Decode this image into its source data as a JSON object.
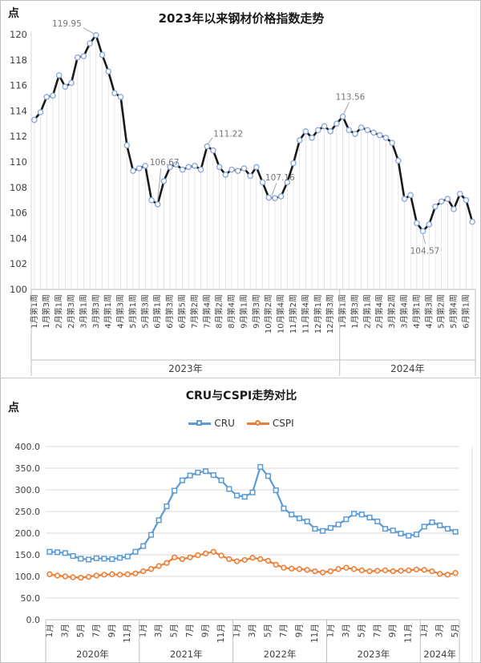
{
  "top_chart": {
    "title": "2023年以来钢材价格指数走势",
    "unit_label": "点"
  },
  "bottom_chart": {
    "title": "CRU与CSPI走势对比",
    "unit_label": "点",
    "legend": [
      "CRU",
      "CSPI"
    ]
  },
  "chart_data": [
    {
      "type": "line",
      "title": "2023年以来钢材价格指数走势",
      "ylabel": "点",
      "ylim": [
        100,
        120
      ],
      "ytick_step": 2,
      "grid": "droplines",
      "line_color": "#1a1a1a",
      "marker_stroke": "#8FAADC",
      "x_labels": [
        {
          "i": 0,
          "t": "1月第1周"
        },
        {
          "i": 2,
          "t": "1月第3周"
        },
        {
          "i": 4,
          "t": "2月第1周"
        },
        {
          "i": 6,
          "t": "2月第3周"
        },
        {
          "i": 8,
          "t": "3月第1周"
        },
        {
          "i": 10,
          "t": "3月第3周"
        },
        {
          "i": 12,
          "t": "4月第1周"
        },
        {
          "i": 14,
          "t": "4月第3周"
        },
        {
          "i": 16,
          "t": "5月第1周"
        },
        {
          "i": 18,
          "t": "5月第3周"
        },
        {
          "i": 20,
          "t": "6月第1周"
        },
        {
          "i": 22,
          "t": "6月第3周"
        },
        {
          "i": 24,
          "t": "6月第5周"
        },
        {
          "i": 26,
          "t": "7月第2周"
        },
        {
          "i": 28,
          "t": "7月第4周"
        },
        {
          "i": 30,
          "t": "8月第2周"
        },
        {
          "i": 32,
          "t": "8月第4周"
        },
        {
          "i": 34,
          "t": "9月第1周"
        },
        {
          "i": 36,
          "t": "9月第3周"
        },
        {
          "i": 38,
          "t": "10月第2周"
        },
        {
          "i": 40,
          "t": "10月第4周"
        },
        {
          "i": 42,
          "t": "11月第2周"
        },
        {
          "i": 44,
          "t": "11月第4周"
        },
        {
          "i": 46,
          "t": "12月第1周"
        },
        {
          "i": 48,
          "t": "12月第3周"
        },
        {
          "i": 50,
          "t": "1月第1周"
        },
        {
          "i": 52,
          "t": "1月第3周"
        },
        {
          "i": 54,
          "t": "2月第1周"
        },
        {
          "i": 56,
          "t": "2月第4周"
        },
        {
          "i": 58,
          "t": "3月第2周"
        },
        {
          "i": 60,
          "t": "3月第4周"
        },
        {
          "i": 62,
          "t": "4月第1周"
        },
        {
          "i": 64,
          "t": "4月第3周"
        },
        {
          "i": 66,
          "t": "5月第2周"
        },
        {
          "i": 68,
          "t": "5月第4周"
        },
        {
          "i": 70,
          "t": "6月第1周"
        }
      ],
      "year_groups": [
        {
          "label": "2023年",
          "points": 50
        },
        {
          "label": "2024年",
          "points": 22
        }
      ],
      "values": [
        113.3,
        113.9,
        115.1,
        115.2,
        116.8,
        115.9,
        116.2,
        118.2,
        118.3,
        119.3,
        119.95,
        118.4,
        117.1,
        115.4,
        115.1,
        111.3,
        109.3,
        109.5,
        109.7,
        107.0,
        106.67,
        108.5,
        109.6,
        109.8,
        109.4,
        109.6,
        109.7,
        109.4,
        111.22,
        110.9,
        109.6,
        109.0,
        109.4,
        109.3,
        109.5,
        108.9,
        109.6,
        108.4,
        107.2,
        107.16,
        107.3,
        108.4,
        109.9,
        111.7,
        112.4,
        111.9,
        112.5,
        112.8,
        112.4,
        113.0,
        113.56,
        112.5,
        112.2,
        112.7,
        112.5,
        112.3,
        112.1,
        111.9,
        111.5,
        110.1,
        107.1,
        107.4,
        105.2,
        104.57,
        105.1,
        106.5,
        106.9,
        107.1,
        106.3,
        107.5,
        107.0,
        105.3
      ],
      "annotations": [
        {
          "i": 10,
          "t": "119.95"
        },
        {
          "i": 20,
          "t": "106.67"
        },
        {
          "i": 28,
          "t": "111.22"
        },
        {
          "i": 39,
          "t": "107.16"
        },
        {
          "i": 50,
          "t": "113.56"
        },
        {
          "i": 63,
          "t": "104.57"
        }
      ]
    },
    {
      "type": "line",
      "title": "CRU与CSPI走势对比",
      "ylabel": "点",
      "ylim": [
        0,
        400
      ],
      "ytick_step": 50,
      "grid": "horizontal",
      "x_labels": [
        {
          "i": 0,
          "t": "1月"
        },
        {
          "i": 2,
          "t": "3月"
        },
        {
          "i": 4,
          "t": "5月"
        },
        {
          "i": 6,
          "t": "7月"
        },
        {
          "i": 8,
          "t": "9月"
        },
        {
          "i": 10,
          "t": "11月"
        },
        {
          "i": 12,
          "t": "1月"
        },
        {
          "i": 14,
          "t": "3月"
        },
        {
          "i": 16,
          "t": "5月"
        },
        {
          "i": 18,
          "t": "7月"
        },
        {
          "i": 20,
          "t": "9月"
        },
        {
          "i": 22,
          "t": "11月"
        },
        {
          "i": 24,
          "t": "1月"
        },
        {
          "i": 26,
          "t": "3月"
        },
        {
          "i": 28,
          "t": "5月"
        },
        {
          "i": 30,
          "t": "7月"
        },
        {
          "i": 32,
          "t": "9月"
        },
        {
          "i": 34,
          "t": "11月"
        },
        {
          "i": 36,
          "t": "1月"
        },
        {
          "i": 38,
          "t": "3月"
        },
        {
          "i": 40,
          "t": "5月"
        },
        {
          "i": 42,
          "t": "7月"
        },
        {
          "i": 44,
          "t": "9月"
        },
        {
          "i": 46,
          "t": "11月"
        },
        {
          "i": 48,
          "t": "1月"
        },
        {
          "i": 50,
          "t": "3月"
        },
        {
          "i": 52,
          "t": "5月"
        }
      ],
      "year_groups": [
        {
          "label": "2020年",
          "points": 12
        },
        {
          "label": "2021年",
          "points": 12
        },
        {
          "label": "2022年",
          "points": 12
        },
        {
          "label": "2023年",
          "points": 12
        },
        {
          "label": "2024年",
          "points": 5
        }
      ],
      "series": [
        {
          "name": "CRU",
          "color": "#5B9BD5",
          "marker": "square",
          "values": [
            157,
            156,
            154,
            147,
            141,
            139,
            142,
            141,
            140,
            143,
            146,
            157,
            170,
            196,
            230,
            262,
            298,
            322,
            333,
            340,
            343,
            334,
            322,
            302,
            287,
            284,
            294,
            353,
            332,
            299,
            257,
            243,
            234,
            227,
            210,
            205,
            212,
            220,
            232,
            245,
            243,
            236,
            227,
            210,
            206,
            199,
            194,
            197,
            215,
            225,
            218,
            210,
            203
          ]
        },
        {
          "name": "CSPI",
          "color": "#ED7D31",
          "marker": "circle",
          "values": [
            105,
            102,
            100,
            98,
            97,
            99,
            102,
            104,
            105,
            104,
            105,
            107,
            112,
            117,
            124,
            131,
            144,
            140,
            144,
            149,
            153,
            157,
            148,
            140,
            135,
            138,
            143,
            140,
            136,
            127,
            120,
            118,
            117,
            115,
            112,
            109,
            112,
            117,
            120,
            117,
            114,
            112,
            113,
            114,
            112,
            113,
            114,
            116,
            115,
            112,
            106,
            104,
            108
          ]
        }
      ]
    }
  ]
}
